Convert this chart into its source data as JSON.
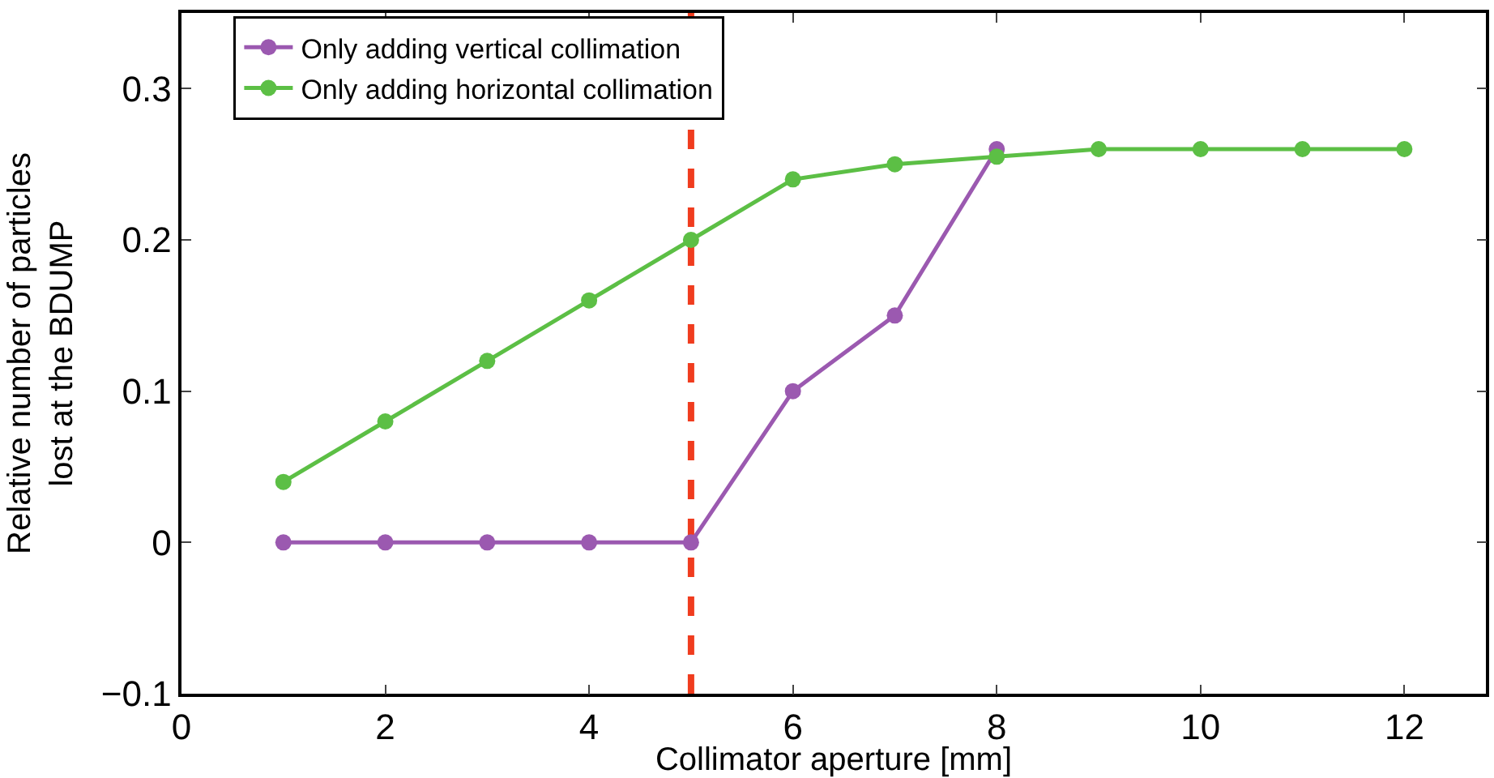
{
  "chart_data": {
    "type": "line",
    "xlabel": "Collimator aperture [mm]",
    "ylabel": "Relative number of particles\nlost at the BDUMP",
    "x": [
      1,
      2,
      3,
      4,
      5,
      6,
      7,
      8,
      9,
      10,
      11,
      12
    ],
    "series": [
      {
        "name": "Only adding vertical collimation",
        "color": "#9b59b0",
        "values": [
          0,
          0,
          0,
          0,
          0,
          0.1,
          0.15,
          0.26,
          null,
          null,
          null,
          null
        ]
      },
      {
        "name": "Only adding horizontal collimation",
        "color": "#5cbf45",
        "values": [
          0.04,
          0.08,
          0.12,
          0.16,
          0.2,
          0.24,
          0.25,
          0.255,
          0.26,
          0.26,
          0.26,
          0.26
        ]
      }
    ],
    "xlim": [
      0,
      12.8
    ],
    "xticks": [
      0,
      2,
      4,
      6,
      8,
      10,
      12
    ],
    "ylim": [
      -0.1,
      0.35
    ],
    "yticks": [
      {
        "value": -0.1,
        "label": "−0.1"
      },
      0,
      0.1,
      0.2,
      0.3
    ],
    "ref_lines": [
      {
        "axis": "x",
        "value": 5,
        "label": null,
        "color": "#f03c1e",
        "line_style": "dashed"
      }
    ],
    "legend": "top left",
    "marker": "circle",
    "line_style": "solid"
  }
}
